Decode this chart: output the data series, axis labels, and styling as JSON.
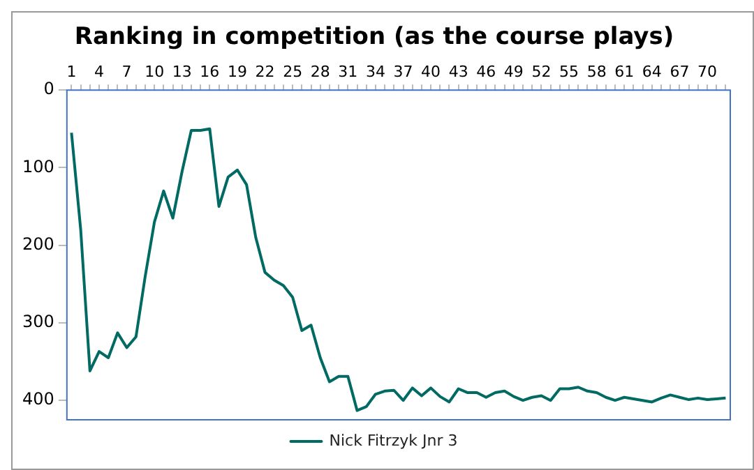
{
  "chart_data": {
    "type": "line",
    "title": "Ranking in competition (as the course plays)",
    "categories": [
      "1",
      null,
      null,
      "4",
      null,
      null,
      "7",
      null,
      null,
      "10",
      null,
      null,
      "13",
      null,
      null,
      "16",
      null,
      null,
      "19",
      null,
      null,
      "22",
      null,
      null,
      "25",
      null,
      null,
      "28",
      null,
      null,
      "31",
      null,
      null,
      "34",
      null,
      null,
      "37",
      null,
      null,
      "40",
      null,
      null,
      "43",
      null,
      null,
      "46",
      null,
      null,
      "49",
      null,
      null,
      "52",
      null,
      null,
      "55",
      null,
      null,
      "58",
      null,
      null,
      "61",
      null,
      null,
      "64",
      null,
      null,
      "67",
      null,
      null,
      "70",
      null,
      null
    ],
    "series": [
      {
        "name": "Nick Fitrzyk Jnr 3",
        "color": "#006a63",
        "values": [
          55,
          180,
          362,
          337,
          345,
          313,
          332,
          318,
          240,
          170,
          130,
          165,
          105,
          52,
          52,
          50,
          150,
          112,
          103,
          122,
          190,
          235,
          245,
          252,
          267,
          310,
          303,
          345,
          376,
          369,
          369,
          413,
          408,
          392,
          388,
          387,
          400,
          384,
          394,
          384,
          395,
          402,
          385,
          390,
          390,
          396,
          390,
          388,
          395,
          400,
          396,
          394,
          400,
          385,
          385,
          383,
          388,
          390,
          396,
          400,
          396,
          398,
          400,
          402,
          397,
          393,
          396,
          399,
          397,
          399,
          398,
          397
        ]
      }
    ],
    "ylim": [
      425,
      0
    ],
    "yticks": [
      0,
      100,
      200,
      300,
      400
    ],
    "grid": false,
    "legend": "bottom",
    "marker": "none",
    "line_style": "solid"
  }
}
